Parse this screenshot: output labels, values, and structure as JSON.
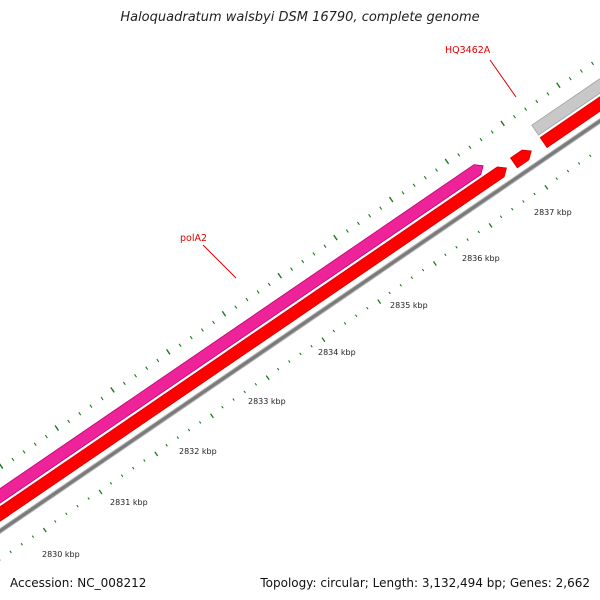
{
  "map": {
    "title": "Haloquadratum walsbyi DSM 16790, complete genome",
    "accession": "Accession: NC_008212",
    "stats": "Topology: circular; Length: 3,132,494 bp; Genes: 2,662"
  },
  "colors": {
    "backbone": "#7a7a7a",
    "cds_forward": "#ff0000",
    "gene_highlight": "#ee2299",
    "gene_other": "#c8c8c8",
    "tick": "#1a7a1a",
    "label_red": "#dd0000"
  },
  "genes": [
    {
      "name": "polA2",
      "strand": "forward",
      "color": "#ee2299"
    },
    {
      "name": "HQ3462A",
      "strand": "forward",
      "color": "#ff0000"
    }
  ],
  "ruler": {
    "unit": "kbp",
    "labels": [
      "2830 kbp",
      "2831 kbp",
      "2832 kbp",
      "2833 kbp",
      "2834 kbp",
      "2835 kbp",
      "2836 kbp",
      "2837 kbp"
    ]
  }
}
